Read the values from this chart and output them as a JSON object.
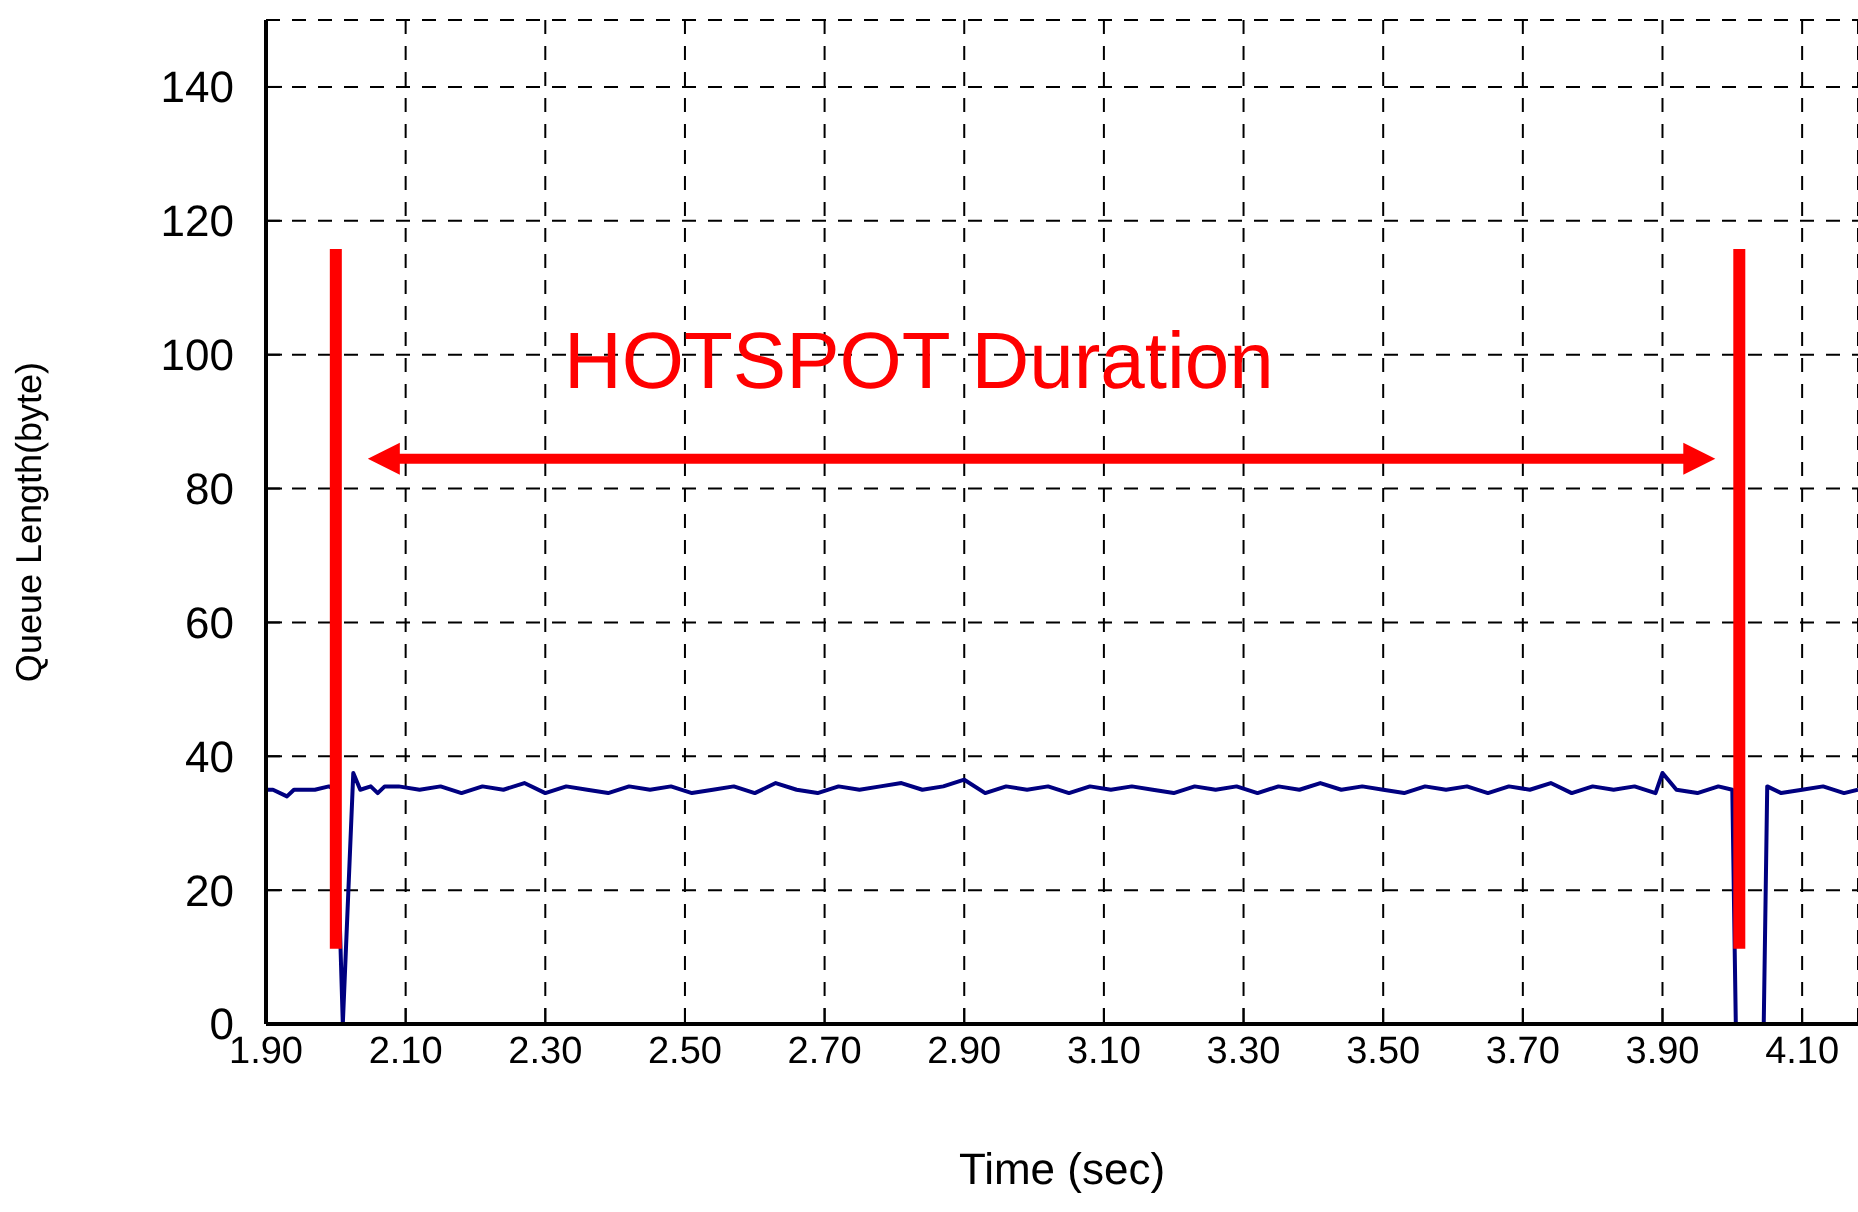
{
  "chart_data": {
    "type": "line",
    "xlabel": "Time (sec)",
    "ylabel": "Queue Length(byte)",
    "xlim": [
      1.9,
      4.18
    ],
    "xticks": [
      {
        "value": 1.9,
        "label": "1.90"
      },
      {
        "value": 2.1,
        "label": "2.10"
      },
      {
        "value": 2.3,
        "label": "2.30"
      },
      {
        "value": 2.5,
        "label": "2.50"
      },
      {
        "value": 2.7,
        "label": "2.70"
      },
      {
        "value": 2.9,
        "label": "2.90"
      },
      {
        "value": 3.1,
        "label": "3.10"
      },
      {
        "value": 3.3,
        "label": "3.30"
      },
      {
        "value": 3.5,
        "label": "3.50"
      },
      {
        "value": 3.7,
        "label": "3.70"
      },
      {
        "value": 3.9,
        "label": "3.90"
      },
      {
        "value": 4.1,
        "label": "4.10"
      }
    ],
    "ylim": [
      0,
      150
    ],
    "yticks": [
      0,
      20,
      40,
      60,
      80,
      100,
      120,
      140
    ],
    "grid": true,
    "legend": false,
    "marker": "none",
    "line_style": "solid",
    "x": [
      1.9,
      1.91,
      1.93,
      1.94,
      1.97,
      1.99,
      2.0,
      2.01,
      2.025,
      2.035,
      2.05,
      2.06,
      2.07,
      2.09,
      2.12,
      2.15,
      2.18,
      2.21,
      2.24,
      2.27,
      2.3,
      2.33,
      2.36,
      2.39,
      2.42,
      2.45,
      2.48,
      2.51,
      2.54,
      2.57,
      2.6,
      2.63,
      2.66,
      2.69,
      2.72,
      2.75,
      2.78,
      2.81,
      2.84,
      2.87,
      2.9,
      2.93,
      2.96,
      2.99,
      3.02,
      3.05,
      3.08,
      3.11,
      3.14,
      3.17,
      3.2,
      3.23,
      3.26,
      3.29,
      3.32,
      3.35,
      3.38,
      3.41,
      3.44,
      3.47,
      3.5,
      3.53,
      3.56,
      3.59,
      3.62,
      3.65,
      3.68,
      3.71,
      3.74,
      3.77,
      3.8,
      3.83,
      3.86,
      3.89,
      3.9,
      3.92,
      3.95,
      3.98,
      4.0,
      4.005,
      4.045,
      4.05,
      4.07,
      4.1,
      4.13,
      4.16,
      4.18
    ],
    "series": [
      {
        "color": "#000080",
        "values": [
          35,
          35,
          34,
          35,
          35,
          35.5,
          35,
          0,
          37.5,
          35,
          35.5,
          34.5,
          35.5,
          35.5,
          35,
          35.5,
          34.5,
          35.5,
          35,
          36,
          34.5,
          35.5,
          35,
          34.5,
          35.5,
          35,
          35.5,
          34.5,
          35,
          35.5,
          34.5,
          36,
          35,
          34.5,
          35.5,
          35,
          35.5,
          36,
          35,
          35.5,
          36.5,
          34.5,
          35.5,
          35,
          35.5,
          34.5,
          35.5,
          35,
          35.5,
          35,
          34.5,
          35.5,
          35,
          35.5,
          34.5,
          35.5,
          35,
          36,
          35,
          35.5,
          35,
          34.5,
          35.5,
          35,
          35.5,
          34.5,
          35.5,
          35,
          36,
          34.5,
          35.5,
          35,
          35.5,
          34.5,
          37.5,
          35,
          34.5,
          35.5,
          35,
          0,
          0,
          35.5,
          34.5,
          35,
          35.5,
          34.5,
          35
        ]
      }
    ],
    "ref_lines": [
      {
        "axis": "x",
        "value": 2.0,
        "color": "#ff0000"
      },
      {
        "axis": "x",
        "value": 4.01,
        "color": "#ff0000"
      }
    ],
    "annotations": [
      "HOTSPOT Duration"
    ]
  }
}
